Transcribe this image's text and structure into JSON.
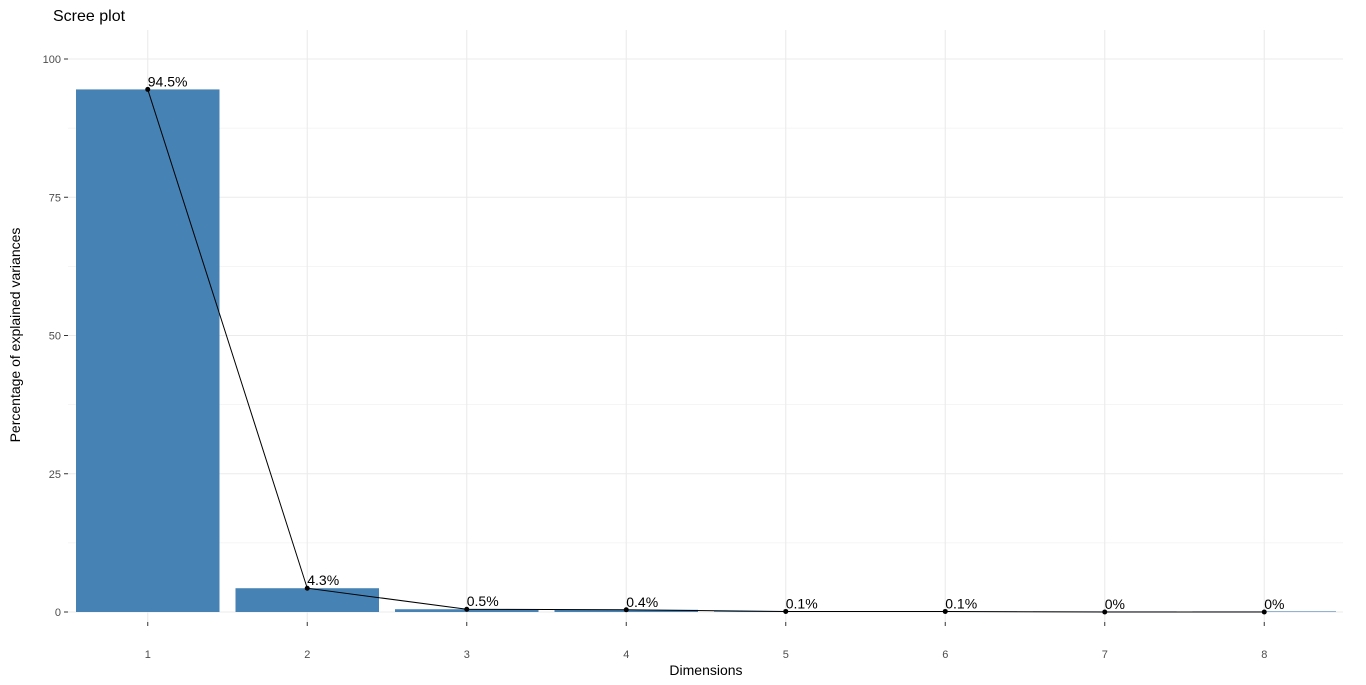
{
  "chart_data": {
    "type": "bar",
    "title": "Scree plot",
    "xlabel": "Dimensions",
    "ylabel": "Percentage of explained variances",
    "categories": [
      "1",
      "2",
      "3",
      "4",
      "5",
      "6",
      "7",
      "8"
    ],
    "values": [
      94.5,
      4.3,
      0.5,
      0.4,
      0.1,
      0.1,
      0.0,
      0.0
    ],
    "data_labels": [
      "94.5%",
      "4.3%",
      "0.5%",
      "0.4%",
      "0.1%",
      "0.1%",
      "0%",
      "0%"
    ],
    "yticks": [
      "0",
      "25",
      "50",
      "75",
      "100"
    ],
    "ylim": [
      0,
      100
    ],
    "grid": true,
    "overlay_line": true,
    "legend": "none",
    "colors": {
      "bar": "#4682b4",
      "line": "#000000",
      "grid": "#ebebeb",
      "tick_text": "#4d4d4d"
    }
  }
}
